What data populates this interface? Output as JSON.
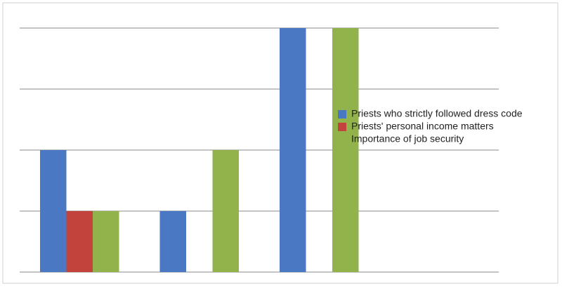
{
  "chart_data": {
    "type": "bar",
    "categories": [
      null,
      null,
      null
    ],
    "series": [
      {
        "name": "Priests who strictly followed dress code",
        "color": "#4a78c2",
        "values": [
          2,
          1,
          4
        ]
      },
      {
        "name": "Priests' personal income matters",
        "color": "#c2423c",
        "values": [
          1,
          0,
          0
        ]
      },
      {
        "name": "Importance of job security",
        "color": "#92b24c",
        "values": [
          1,
          2,
          4
        ]
      }
    ],
    "ylim": [
      0,
      4
    ],
    "yticks": [
      0,
      1,
      2,
      3,
      4
    ],
    "grid": true,
    "legend": "right"
  }
}
